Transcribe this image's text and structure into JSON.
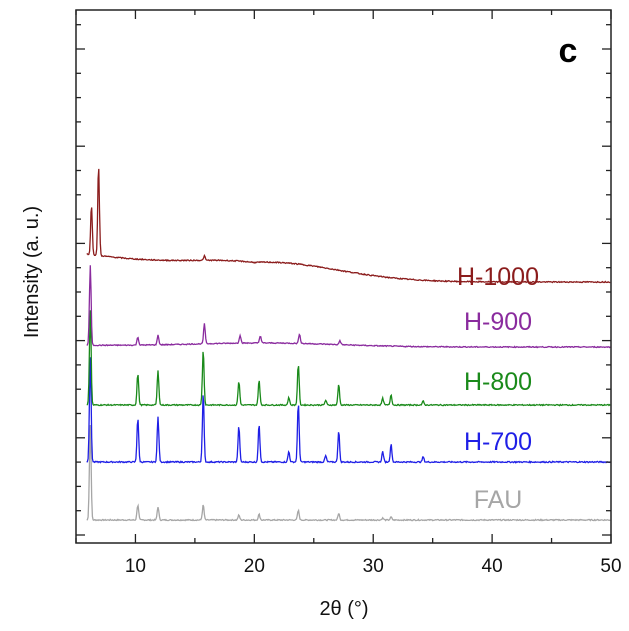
{
  "chart_data": {
    "type": "line",
    "panel_label": "c",
    "xlabel": "2θ (°)",
    "ylabel": "Intensity (a. u.)",
    "xlim": [
      5,
      50
    ],
    "xticks": [
      10,
      20,
      30,
      40,
      50
    ],
    "xtick_labels": [
      "10",
      "20",
      "30",
      "40",
      "50"
    ],
    "yticks_labeled": false,
    "grid": false,
    "legend": "inline labels at right",
    "series": [
      {
        "name": "FAU",
        "color": "#a6a6a6",
        "baseline": 0.0,
        "height": 0.95,
        "labelY": 0.12,
        "peaks": [
          [
            6.2,
            1.0
          ],
          [
            10.2,
            0.16
          ],
          [
            11.9,
            0.14
          ],
          [
            15.7,
            0.16
          ],
          [
            18.7,
            0.05
          ],
          [
            20.4,
            0.06
          ],
          [
            23.7,
            0.1
          ],
          [
            27.1,
            0.07
          ],
          [
            30.8,
            0.02
          ],
          [
            31.5,
            0.03
          ]
        ],
        "humpAmp": 0.0,
        "drop": 0.0
      },
      {
        "name": "H-700",
        "color": "#1f1fe6",
        "baseline": 0.58,
        "height": 1.05,
        "labelY": 0.7,
        "peaks": [
          [
            6.2,
            1.0
          ],
          [
            10.2,
            0.42
          ],
          [
            11.9,
            0.43
          ],
          [
            15.7,
            0.66
          ],
          [
            18.7,
            0.34
          ],
          [
            20.4,
            0.36
          ],
          [
            22.9,
            0.1
          ],
          [
            23.7,
            0.56
          ],
          [
            26.0,
            0.06
          ],
          [
            27.1,
            0.3
          ],
          [
            30.8,
            0.1
          ],
          [
            31.5,
            0.17
          ],
          [
            34.2,
            0.05
          ]
        ],
        "humpAmp": 0.0,
        "drop": 0.0
      },
      {
        "name": "H-800",
        "color": "#1a8a1a",
        "baseline": 1.15,
        "height": 0.95,
        "labelY": 1.3,
        "peaks": [
          [
            6.2,
            1.0
          ],
          [
            10.2,
            0.33
          ],
          [
            11.9,
            0.36
          ],
          [
            15.7,
            0.58
          ],
          [
            18.7,
            0.25
          ],
          [
            20.4,
            0.26
          ],
          [
            22.9,
            0.08
          ],
          [
            23.7,
            0.43
          ],
          [
            26.0,
            0.05
          ],
          [
            27.1,
            0.22
          ],
          [
            30.8,
            0.07
          ],
          [
            31.5,
            0.11
          ],
          [
            34.2,
            0.04
          ]
        ],
        "humpAmp": 0.0,
        "drop": 0.0
      },
      {
        "name": "H-900",
        "color": "#8a2b9e",
        "baseline": 1.73,
        "height": 0.8,
        "labelY": 1.9,
        "peaks": [
          [
            6.2,
            1.0
          ],
          [
            10.2,
            0.1
          ],
          [
            11.9,
            0.12
          ],
          [
            15.8,
            0.25
          ],
          [
            18.8,
            0.1
          ],
          [
            20.5,
            0.09
          ],
          [
            23.8,
            0.12
          ],
          [
            27.2,
            0.05
          ]
        ],
        "humpAmp": 0.05,
        "drop": 0.02
      },
      {
        "name": "H-1000",
        "color": "#8b1c1c",
        "baseline": 2.38,
        "height": 0.9,
        "labelY": 2.35,
        "peaks": [
          [
            6.3,
            0.55
          ],
          [
            6.9,
            1.0
          ],
          [
            15.8,
            0.05
          ]
        ],
        "humpAmp": 0.22,
        "drop": 0.3
      }
    ]
  }
}
